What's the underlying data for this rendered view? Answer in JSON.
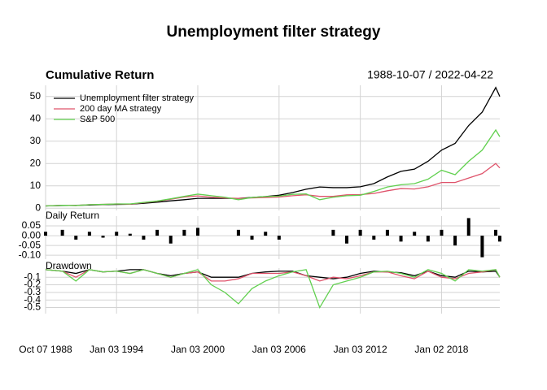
{
  "title": "Unemployment filter strategy",
  "chart_data": [
    {
      "type": "line",
      "title": "Cumulative Return",
      "date_range": "1988-10-07 / 2022-04-22",
      "x": [
        "1988-10-07",
        "1990-01-03",
        "1991-01-03",
        "1992-01-03",
        "1993-01-03",
        "1994-01-03",
        "1995-01-03",
        "1996-01-03",
        "1997-01-03",
        "1998-01-03",
        "1999-01-03",
        "2000-01-03",
        "2001-01-03",
        "2002-01-03",
        "2003-01-03",
        "2004-01-03",
        "2005-01-03",
        "2006-01-03",
        "2007-01-03",
        "2008-01-03",
        "2009-01-03",
        "2010-01-03",
        "2011-01-03",
        "2012-01-03",
        "2013-01-03",
        "2014-01-03",
        "2015-01-03",
        "2016-01-03",
        "2017-01-03",
        "2018-01-03",
        "2019-01-03",
        "2020-01-03",
        "2021-01-03",
        "2022-01-03",
        "2022-04-22"
      ],
      "series": [
        {
          "name": "Unemployment filter strategy",
          "color": "#000000",
          "values": [
            1,
            1.2,
            1.3,
            1.4,
            1.6,
            1.7,
            1.8,
            2.2,
            2.7,
            3.3,
            3.8,
            4.4,
            4.4,
            4.4,
            4.4,
            4.8,
            5.2,
            5.8,
            7,
            8.5,
            9.5,
            9.2,
            9.2,
            9.6,
            11,
            14,
            16.5,
            17.5,
            21,
            26,
            29,
            37,
            43,
            54,
            50
          ]
        },
        {
          "name": "200 day MA strategy",
          "color": "#DF536B",
          "values": [
            1,
            1.3,
            1.2,
            1.6,
            1.7,
            1.9,
            1.8,
            2.5,
            3.1,
            4.0,
            5.0,
            5.5,
            4.9,
            4.6,
            4.4,
            4.6,
            4.8,
            5.0,
            5.6,
            6.0,
            5.3,
            5.3,
            6.0,
            6.1,
            6.6,
            7.8,
            8.8,
            8.6,
            9.6,
            11.5,
            11.5,
            13.5,
            15.5,
            20,
            18
          ]
        },
        {
          "name": "S&P 500",
          "color": "#61D04F",
          "values": [
            1,
            1.3,
            1.2,
            1.6,
            1.7,
            1.9,
            1.9,
            2.6,
            3.2,
            4.2,
            5.3,
            6.3,
            5.6,
            4.9,
            3.8,
            4.8,
            5.2,
            5.4,
            6.2,
            6.4,
            3.8,
            4.9,
            5.6,
            5.8,
            7.5,
            9.5,
            10.5,
            11,
            13,
            17,
            15,
            21,
            26,
            35,
            32
          ]
        }
      ],
      "xlim": [
        "1988-10-07",
        "2022-04-22"
      ],
      "ylim": [
        -1,
        55
      ],
      "yticks": [
        0,
        10,
        20,
        30,
        40,
        50
      ],
      "grid": true,
      "legend": "topleft"
    },
    {
      "type": "bar",
      "title": "Daily Return",
      "x": [
        "1988-10-07",
        "1990-01-03",
        "1991-01-03",
        "1992-01-03",
        "1993-01-03",
        "1994-01-03",
        "1995-01-03",
        "1996-01-03",
        "1997-01-03",
        "1998-01-03",
        "1999-01-03",
        "2000-01-03",
        "2001-01-03",
        "2002-01-03",
        "2003-01-03",
        "2004-01-03",
        "2005-01-03",
        "2006-01-03",
        "2007-01-03",
        "2008-01-03",
        "2009-01-03",
        "2010-01-03",
        "2011-01-03",
        "2012-01-03",
        "2013-01-03",
        "2014-01-03",
        "2015-01-03",
        "2016-01-03",
        "2017-01-03",
        "2018-01-03",
        "2019-01-03",
        "2020-01-03",
        "2021-01-03",
        "2022-01-03",
        "2022-04-22"
      ],
      "values": [
        0.02,
        0.03,
        -0.02,
        0.02,
        -0.01,
        0.02,
        0.01,
        -0.02,
        0.03,
        -0.04,
        0.03,
        0.04,
        null,
        null,
        0.03,
        -0.02,
        0.02,
        -0.02,
        null,
        null,
        null,
        0.03,
        -0.04,
        0.03,
        -0.02,
        0.03,
        -0.03,
        0.02,
        -0.03,
        0.03,
        -0.05,
        0.09,
        -0.11,
        0.03,
        -0.03
      ],
      "color": "#000000",
      "xlim": [
        "1988-10-07",
        "2022-04-22"
      ],
      "ylim": [
        -0.12,
        0.1
      ],
      "yticks": [
        0.05,
        {
          "value": 0,
          "label": "0.00"
        },
        -0.05,
        {
          "value": -0.1,
          "label": "-0.10"
        }
      ],
      "grid": true
    },
    {
      "type": "line",
      "title": "Drawdown",
      "x": [
        "1988-10-07",
        "1990-01-03",
        "1991-01-03",
        "1992-01-03",
        "1993-01-03",
        "1994-01-03",
        "1995-01-03",
        "1996-01-03",
        "1997-01-03",
        "1998-01-03",
        "1999-01-03",
        "2000-01-03",
        "2001-01-03",
        "2002-01-03",
        "2003-01-03",
        "2004-01-03",
        "2005-01-03",
        "2006-01-03",
        "2007-01-03",
        "2008-01-03",
        "2009-01-03",
        "2010-01-03",
        "2011-01-03",
        "2012-01-03",
        "2013-01-03",
        "2014-01-03",
        "2015-01-03",
        "2016-01-03",
        "2017-01-03",
        "2018-01-03",
        "2019-01-03",
        "2020-01-03",
        "2021-01-03",
        "2022-01-03",
        "2022-04-22"
      ],
      "series": [
        {
          "color": "#000000",
          "values": [
            0,
            -0.02,
            -0.05,
            0,
            -0.03,
            -0.02,
            0,
            0,
            -0.05,
            -0.08,
            -0.05,
            -0.03,
            -0.1,
            -0.1,
            -0.1,
            -0.05,
            -0.03,
            -0.02,
            -0.02,
            -0.08,
            -0.1,
            -0.12,
            -0.1,
            -0.05,
            -0.02,
            -0.03,
            -0.04,
            -0.08,
            -0.02,
            -0.08,
            -0.1,
            -0.02,
            -0.03,
            -0.02,
            -0.1
          ]
        },
        {
          "color": "#DF536B",
          "values": [
            0,
            -0.02,
            -0.1,
            0,
            -0.03,
            -0.02,
            -0.05,
            0,
            -0.05,
            -0.1,
            -0.05,
            -0.03,
            -0.15,
            -0.15,
            -0.12,
            -0.05,
            -0.05,
            -0.05,
            -0.03,
            -0.08,
            -0.15,
            -0.1,
            -0.12,
            -0.08,
            -0.03,
            -0.03,
            -0.08,
            -0.12,
            -0.02,
            -0.1,
            -0.12,
            -0.05,
            -0.03,
            0,
            -0.1
          ]
        },
        {
          "color": "#61D04F",
          "values": [
            0,
            -0.02,
            -0.15,
            0,
            -0.03,
            -0.02,
            -0.05,
            0,
            -0.05,
            -0.1,
            -0.05,
            0,
            -0.2,
            -0.3,
            -0.45,
            -0.25,
            -0.15,
            -0.08,
            -0.03,
            0,
            -0.5,
            -0.2,
            -0.15,
            -0.1,
            -0.03,
            -0.02,
            -0.05,
            -0.1,
            0,
            -0.05,
            -0.15,
            0,
            -0.02,
            0,
            -0.1
          ]
        }
      ],
      "xlim": [
        "1988-10-07",
        "2022-04-22"
      ],
      "ylim": [
        -0.58,
        0.02
      ],
      "yticks": [
        -0.1,
        -0.2,
        -0.3,
        -0.4,
        -0.5
      ],
      "grid": true,
      "xticks": [
        {
          "value": "1988-10-07",
          "label": "Oct 07 1988"
        },
        {
          "value": "1994-01-03",
          "label": "Jan 03 1994"
        },
        {
          "value": "2000-01-03",
          "label": "Jan 03 2000"
        },
        {
          "value": "2006-01-03",
          "label": "Jan 03 2006"
        },
        {
          "value": "2012-01-03",
          "label": "Jan 03 2012"
        },
        {
          "value": "2018-01-02",
          "label": "Jan 02 2018"
        }
      ]
    }
  ]
}
